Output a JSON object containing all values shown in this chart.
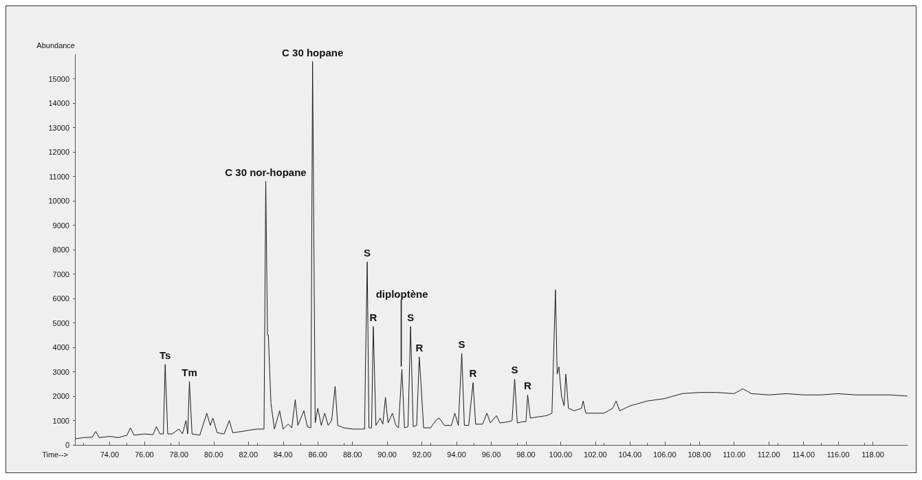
{
  "chart_data": {
    "type": "line",
    "xlabel": "Time-->",
    "ylabel": "Abundance",
    "xlim": [
      72,
      120
    ],
    "ylim": [
      0,
      16000
    ],
    "xticks": [
      {
        "value": 74,
        "label": "74.00"
      },
      {
        "value": 76,
        "label": "76.00"
      },
      {
        "value": 78,
        "label": "78.00"
      },
      {
        "value": 80,
        "label": "80.00"
      },
      {
        "value": 82,
        "label": "82.00"
      },
      {
        "value": 84,
        "label": "84.00"
      },
      {
        "value": 86,
        "label": "86.00"
      },
      {
        "value": 88,
        "label": "88.00"
      },
      {
        "value": 90,
        "label": "90.00"
      },
      {
        "value": 92,
        "label": "92.00"
      },
      {
        "value": 94,
        "label": "94.00"
      },
      {
        "value": 96,
        "label": "96.00"
      },
      {
        "value": 98,
        "label": "98.00"
      },
      {
        "value": 100,
        "label": "100.00"
      },
      {
        "value": 102,
        "label": "102.00"
      },
      {
        "value": 104,
        "label": "104.00"
      },
      {
        "value": 106,
        "label": "106.00"
      },
      {
        "value": 108,
        "label": "108.00"
      },
      {
        "value": 110,
        "label": "110.00"
      },
      {
        "value": 112,
        "label": "112.00"
      },
      {
        "value": 114,
        "label": "114.00"
      },
      {
        "value": 116,
        "label": "116.00"
      },
      {
        "value": 118,
        "label": "118.00"
      }
    ],
    "yticks": [
      0,
      1000,
      2000,
      3000,
      4000,
      5000,
      6000,
      7000,
      8000,
      9000,
      10000,
      11000,
      12000,
      13000,
      14000,
      15000
    ],
    "grid": false,
    "marker": "none",
    "line_style": "solid",
    "series": [
      {
        "color": "#1a1a1a",
        "x": [
          72.0,
          72.5,
          73.0,
          73.2,
          73.4,
          74.0,
          74.5,
          75.0,
          75.2,
          75.4,
          76.0,
          76.5,
          76.7,
          76.9,
          77.1,
          77.2,
          77.35,
          77.6,
          78.0,
          78.2,
          78.4,
          78.5,
          78.6,
          78.75,
          79.2,
          79.6,
          79.8,
          79.95,
          80.2,
          80.6,
          80.9,
          81.1,
          81.6,
          82.0,
          82.5,
          82.9,
          83.0,
          83.1,
          83.15,
          83.3,
          83.5,
          83.8,
          84.0,
          84.3,
          84.5,
          84.7,
          84.85,
          85.2,
          85.4,
          85.6,
          85.7,
          85.85,
          86.0,
          86.2,
          86.4,
          86.6,
          86.8,
          87.0,
          87.15,
          87.5,
          88.0,
          88.5,
          88.7,
          88.75,
          88.85,
          88.95,
          89.1,
          89.2,
          89.35,
          89.6,
          89.75,
          89.9,
          90.05,
          90.3,
          90.5,
          90.65,
          90.85,
          91.0,
          91.2,
          91.35,
          91.5,
          91.7,
          91.85,
          91.95,
          92.1,
          92.5,
          92.8,
          93.0,
          93.3,
          93.7,
          93.9,
          94.1,
          94.3,
          94.45,
          94.7,
          94.95,
          95.1,
          95.5,
          95.75,
          95.95,
          96.3,
          96.5,
          97.0,
          97.2,
          97.35,
          97.5,
          97.8,
          98.0,
          98.1,
          98.25,
          98.7,
          99.2,
          99.5,
          99.7,
          99.8,
          99.9,
          100.05,
          100.2,
          100.3,
          100.45,
          100.8,
          101.2,
          101.3,
          101.45,
          102.0,
          102.5,
          103.0,
          103.2,
          103.4,
          104.0,
          104.5,
          105.0,
          106.0,
          107.0,
          108.0,
          109.0,
          110.0,
          110.5,
          111.0,
          112.0,
          113.0,
          114.0,
          115.0,
          116.0,
          117.0,
          118.0,
          119.0,
          120.0
        ],
        "values": [
          250,
          300,
          320,
          550,
          300,
          350,
          300,
          400,
          700,
          400,
          450,
          420,
          750,
          450,
          450,
          3300,
          450,
          450,
          650,
          450,
          1000,
          450,
          2600,
          450,
          400,
          1300,
          800,
          1100,
          500,
          450,
          1000,
          500,
          550,
          600,
          650,
          650,
          10800,
          4500,
          4500,
          1700,
          650,
          1400,
          650,
          850,
          700,
          1850,
          800,
          1400,
          750,
          700,
          15700,
          900,
          1500,
          800,
          1300,
          800,
          1000,
          2400,
          800,
          700,
          650,
          650,
          650,
          3300,
          7500,
          700,
          700,
          4850,
          800,
          1100,
          850,
          1950,
          900,
          1300,
          800,
          700,
          3100,
          700,
          750,
          4850,
          750,
          800,
          3600,
          2500,
          700,
          700,
          1000,
          1100,
          800,
          800,
          1300,
          800,
          3750,
          800,
          800,
          2550,
          850,
          850,
          1300,
          900,
          1200,
          900,
          950,
          1000,
          2700,
          900,
          950,
          950,
          2050,
          1100,
          1150,
          1200,
          1300,
          6350,
          2900,
          3200,
          2000,
          1600,
          2900,
          1500,
          1400,
          1500,
          1800,
          1300,
          1300,
          1300,
          1500,
          1800,
          1400,
          1600,
          1700,
          1800,
          1900,
          2100,
          2150,
          2150,
          2100,
          2300,
          2100,
          2050,
          2100,
          2050,
          2050,
          2100,
          2050,
          2050,
          2050,
          2000
        ]
      }
    ],
    "annotations": [
      {
        "text": "Ts",
        "x": 77.2,
        "y": 3300
      },
      {
        "text": "Tm",
        "x": 78.6,
        "y": 2600
      },
      {
        "text": "C 30 nor-hopane",
        "x": 83.0,
        "y": 10800
      },
      {
        "text": "C 30 hopane",
        "x": 85.7,
        "y": 15700
      },
      {
        "text": "S",
        "x": 88.85,
        "y": 7500
      },
      {
        "text": "R",
        "x": 89.2,
        "y": 4850
      },
      {
        "text": "diploptène",
        "x": 90.85,
        "y": 3100
      },
      {
        "text": "S",
        "x": 91.35,
        "y": 4850
      },
      {
        "text": "R",
        "x": 91.85,
        "y": 3600
      },
      {
        "text": "S",
        "x": 94.3,
        "y": 3750
      },
      {
        "text": "R",
        "x": 94.95,
        "y": 2550
      },
      {
        "text": "S",
        "x": 97.35,
        "y": 2700
      },
      {
        "text": "R",
        "x": 98.1,
        "y": 2050
      }
    ]
  }
}
